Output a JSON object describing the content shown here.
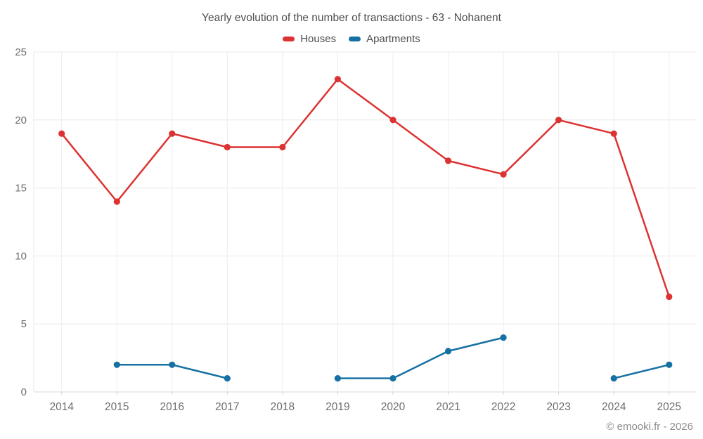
{
  "chart_data": {
    "type": "line",
    "title": "Yearly evolution of the number of transactions - 63 - Nohanent",
    "categories": [
      "2014",
      "2015",
      "2016",
      "2017",
      "2018",
      "2019",
      "2020",
      "2021",
      "2022",
      "2023",
      "2024",
      "2025"
    ],
    "series": [
      {
        "name": "Houses",
        "color": "#dc3332",
        "values": [
          19,
          14,
          19,
          18,
          18,
          23,
          20,
          17,
          16,
          20,
          19,
          7
        ]
      },
      {
        "name": "Apartments",
        "color": "#1770a4",
        "values": [
          null,
          2,
          2,
          1,
          null,
          1,
          1,
          3,
          4,
          null,
          1,
          2
        ]
      }
    ],
    "xlabel": "",
    "ylabel": "",
    "ylim": [
      0,
      25
    ],
    "yticks": [
      0,
      5,
      10,
      15,
      20,
      25
    ],
    "grid": true,
    "legend_position": "top",
    "gap_note": "null values render as line gaps"
  },
  "footer": {
    "text": "© emooki.fr - 2026"
  },
  "colors": {
    "background": "#ffffff",
    "gridline": "#e8e8e8",
    "vertical_gridline": "#ededed",
    "axis_line": "#dadada",
    "tick": "#d6d6d6",
    "axis_label_text": "#6e6e6e",
    "title_text": "#4e4e4e",
    "footer_text": "#8d8d8d"
  }
}
